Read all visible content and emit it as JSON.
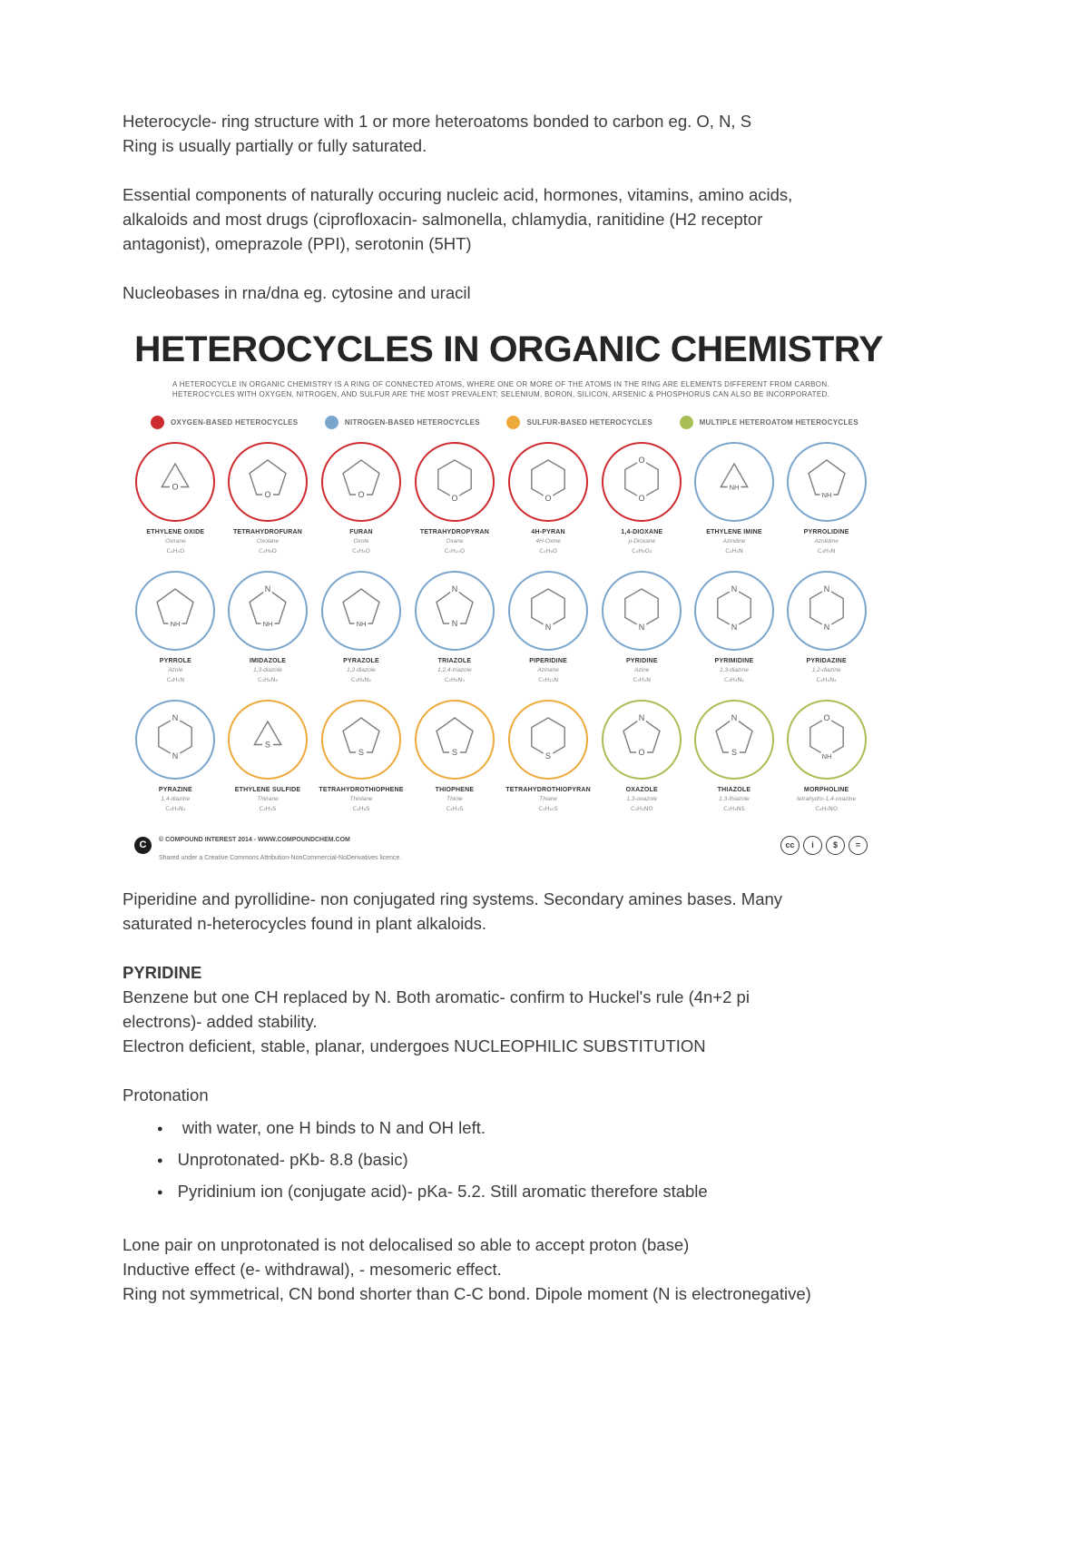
{
  "notes_top": {
    "p1": "Heterocycle- ring structure with 1 or more heteroatoms bonded to carbon eg. O, N, S\nRing is usually partially or fully saturated.",
    "p2": "Essential components of naturally occuring nucleic acid, hormones, vitamins, amino acids,\nalkaloids and most drugs (ciprofloxacin- salmonella, chlamydia, ranitidine (H2 receptor\nantagonist), omeprazole (PPI), serotonin (5HT)",
    "p3": "Nucleobases in rna/dna eg. cytosine and uracil"
  },
  "infographic": {
    "title": "HETEROCYCLES IN ORGANIC CHEMISTRY",
    "subtitle": "A HETEROCYCLE IN ORGANIC CHEMISTRY IS A RING OF CONNECTED ATOMS, WHERE ONE OR MORE OF THE ATOMS IN THE RING ARE ELEMENTS DIFFERENT FROM CARBON.\nHETEROCYCLES WITH OXYGEN, NITROGEN, AND SULFUR ARE THE MOST PREVALENT; SELENIUM, BORON, SILICON, ARSENIC & PHOSPHORUS CAN ALSO BE INCORPORATED.",
    "legend": [
      {
        "label": "OXYGEN-BASED HETEROCYCLES",
        "color": "#ce2b2e"
      },
      {
        "label": "NITROGEN-BASED HETEROCYCLES",
        "color": "#7aa6ce"
      },
      {
        "label": "SULFUR-BASED HETEROCYCLES",
        "color": "#edaa3b"
      },
      {
        "label": "MULTIPLE HETEROATOM HETEROCYCLES",
        "color": "#a8bf55"
      }
    ],
    "compounds": [
      {
        "name": "ETHYLENE OXIDE",
        "alt": "Oxirane",
        "formula": "C₂H₄O",
        "color": "#ce2b2e",
        "shape": "tri",
        "atom": "O"
      },
      {
        "name": "TETRAHYDROFURAN",
        "alt": "Oxolane",
        "formula": "C₄H₈O",
        "color": "#ce2b2e",
        "shape": "pent",
        "atom": "O"
      },
      {
        "name": "FURAN",
        "alt": "Oxole",
        "formula": "C₄H₄O",
        "color": "#ce2b2e",
        "shape": "pent",
        "atom": "O"
      },
      {
        "name": "TETRAHYDROPYRAN",
        "alt": "Oxane",
        "formula": "C₅H₁₀O",
        "color": "#ce2b2e",
        "shape": "hex",
        "atom": "O"
      },
      {
        "name": "4H-PYRAN",
        "alt": "4H-Oxine",
        "formula": "C₅H₆O",
        "color": "#ce2b2e",
        "shape": "hex",
        "atom": "O"
      },
      {
        "name": "1,4-DIOXANE",
        "alt": "p-Dioxane",
        "formula": "C₄H₈O₂",
        "color": "#ce2b2e",
        "shape": "hex",
        "atom": "O",
        "atom_top": "O"
      },
      {
        "name": "ETHYLENE IMINE",
        "alt": "Aziridine",
        "formula": "C₂H₅N",
        "color": "#7aa6ce",
        "shape": "tri",
        "atom": "NH"
      },
      {
        "name": "PYRROLIDINE",
        "alt": "Azolidine",
        "formula": "C₄H₉N",
        "color": "#7aa6ce",
        "shape": "pent",
        "atom": "NH"
      },
      {
        "name": "PYRROLE",
        "alt": "Azole",
        "formula": "C₄H₅N",
        "color": "#7aa6ce",
        "shape": "pent",
        "atom": "NH"
      },
      {
        "name": "IMIDAZOLE",
        "alt": "1,3-diazole",
        "formula": "C₃H₄N₂",
        "color": "#7aa6ce",
        "shape": "pent",
        "atom": "NH",
        "atom_top": "N"
      },
      {
        "name": "PYRAZOLE",
        "alt": "1,2-diazole",
        "formula": "C₃H₄N₂",
        "color": "#7aa6ce",
        "shape": "pent",
        "atom": "NH"
      },
      {
        "name": "TRIAZOLE",
        "alt": "1,2,4-triazole",
        "formula": "C₂H₃N₃",
        "color": "#7aa6ce",
        "shape": "pent",
        "atom": "N",
        "atom_top": "N"
      },
      {
        "name": "PIPERIDINE",
        "alt": "Azinane",
        "formula": "C₅H₁₁N",
        "color": "#7aa6ce",
        "shape": "hex",
        "atom": "N"
      },
      {
        "name": "PYRIDINE",
        "alt": "Azine",
        "formula": "C₅H₅N",
        "color": "#7aa6ce",
        "shape": "hex",
        "atom": "N"
      },
      {
        "name": "PYRIMIDINE",
        "alt": "1,3-diazine",
        "formula": "C₄H₄N₂",
        "color": "#7aa6ce",
        "shape": "hex",
        "atom": "N",
        "atom_top": "N"
      },
      {
        "name": "PYRIDAZINE",
        "alt": "1,2-diazine",
        "formula": "C₄H₄N₂",
        "color": "#7aa6ce",
        "shape": "hex",
        "atom": "N",
        "atom_top": "N"
      },
      {
        "name": "PYRAZINE",
        "alt": "1,4-diazine",
        "formula": "C₄H₄N₂",
        "color": "#7aa6ce",
        "shape": "hex",
        "atom": "N",
        "atom_top": "N"
      },
      {
        "name": "ETHYLENE SULFIDE",
        "alt": "Thiirane",
        "formula": "C₂H₄S",
        "color": "#edaa3b",
        "shape": "tri",
        "atom": "S"
      },
      {
        "name": "TETRAHYDROTHIOPHENE",
        "alt": "Thiolane",
        "formula": "C₄H₈S",
        "color": "#edaa3b",
        "shape": "pent",
        "atom": "S"
      },
      {
        "name": "THIOPHENE",
        "alt": "Thiole",
        "formula": "C₄H₄S",
        "color": "#edaa3b",
        "shape": "pent",
        "atom": "S"
      },
      {
        "name": "TETRAHYDROTHIOPYRAN",
        "alt": "Thiane",
        "formula": "C₅H₁₀S",
        "color": "#edaa3b",
        "shape": "hex",
        "atom": "S"
      },
      {
        "name": "OXAZOLE",
        "alt": "1,3-oxazole",
        "formula": "C₃H₃NO",
        "color": "#a8bf55",
        "shape": "pent",
        "atom": "O",
        "atom_top": "N"
      },
      {
        "name": "THIAZOLE",
        "alt": "1,3-thiazole",
        "formula": "C₃H₃NS",
        "color": "#a8bf55",
        "shape": "pent",
        "atom": "S",
        "atom_top": "N"
      },
      {
        "name": "MORPHOLINE",
        "alt": "tetrahydro-1,4-oxazine",
        "formula": "C₄H₉NO",
        "color": "#a8bf55",
        "shape": "hex",
        "atom": "NH",
        "atom_top": "O"
      }
    ],
    "footer": {
      "logo_letter": "C",
      "line1": "© COMPOUND INTEREST 2014 - WWW.COMPOUNDCHEM.COM",
      "line2": "Shared under a Creative Commons Attribution-NonCommercial-NoDerivatives licence.",
      "cc_glyphs": [
        "cc",
        "i",
        "$",
        "="
      ]
    }
  },
  "notes_bottom": {
    "p4": "Piperidine and pyrollidine- non conjugated ring systems. Secondary amines bases. Many\nsaturated n-heterocycles found in plant alkaloids.",
    "heading": "PYRIDINE",
    "p5": "Benzene but one CH replaced by N. Both aromatic- confirm to Huckel's rule (4n+2 pi\nelectrons)- added stability.\nElectron deficient, stable, planar, undergoes NUCLEOPHILIC SUBSTITUTION",
    "p6": "Protonation",
    "bullets": [
      " with water, one H binds to N and OH left.",
      "Unprotonated- pKb- 8.8 (basic)",
      "Pyridinium ion (conjugate acid)- pKa- 5.2. Still aromatic therefore stable"
    ],
    "p7": "Lone pair on unprotonated is not delocalised so able to accept proton (base)\nInductive effect (e- withdrawal), - mesomeric effect.\nRing not symmetrical, CN bond shorter than C-C bond. Dipole moment (N is electronegative)"
  }
}
